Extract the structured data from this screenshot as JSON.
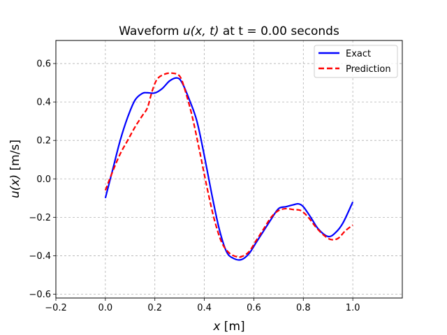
{
  "chart_data": {
    "type": "line",
    "title": "Waveform u(x, t) at t = 0.00 seconds",
    "title_parts": {
      "prefix": "Waveform ",
      "func": "u",
      "args": "(x, t)",
      "suffix": " at t = 0.00 seconds"
    },
    "xlabel": "x [m]",
    "xlabel_parts": {
      "var": "x",
      "unit": " [m]"
    },
    "ylabel": "u(x) [m/s]",
    "ylabel_parts": {
      "func": "u",
      "args": "(x)",
      "unit": " [m/s]"
    },
    "xlim": [
      -0.2,
      1.2
    ],
    "ylim": [
      -0.62,
      0.72
    ],
    "xticks": [
      -0.2,
      0.0,
      0.2,
      0.4,
      0.6,
      0.8,
      1.0
    ],
    "xtick_labels": [
      "−0.2",
      "0.0",
      "0.2",
      "0.4",
      "0.6",
      "0.8",
      "1.0"
    ],
    "yticks": [
      -0.6,
      -0.4,
      -0.2,
      0.0,
      0.2,
      0.4,
      0.6
    ],
    "ytick_labels": [
      "−0.6",
      "−0.4",
      "−0.2",
      "0.0",
      "0.2",
      "0.4",
      "0.6"
    ],
    "grid": true,
    "legend_position": "top-right",
    "series": [
      {
        "name": "Exact",
        "color": "#0000ff",
        "style": "solid",
        "x": [
          0.0,
          0.03,
          0.06,
          0.09,
          0.12,
          0.15,
          0.17,
          0.2,
          0.23,
          0.26,
          0.29,
          0.31,
          0.34,
          0.37,
          0.4,
          0.43,
          0.46,
          0.49,
          0.52,
          0.55,
          0.58,
          0.61,
          0.64,
          0.67,
          0.7,
          0.73,
          0.76,
          0.78,
          0.8,
          0.83,
          0.86,
          0.9,
          0.93,
          0.96,
          1.0
        ],
        "y": [
          -0.1,
          0.05,
          0.2,
          0.32,
          0.41,
          0.445,
          0.448,
          0.447,
          0.47,
          0.51,
          0.525,
          0.5,
          0.41,
          0.3,
          0.12,
          -0.08,
          -0.26,
          -0.38,
          -0.415,
          -0.42,
          -0.39,
          -0.33,
          -0.27,
          -0.21,
          -0.155,
          -0.145,
          -0.135,
          -0.13,
          -0.145,
          -0.2,
          -0.26,
          -0.3,
          -0.28,
          -0.23,
          -0.12
        ]
      },
      {
        "name": "Prediction",
        "color": "#ff0000",
        "style": "dashed",
        "x": [
          0.0,
          0.03,
          0.06,
          0.09,
          0.12,
          0.15,
          0.17,
          0.19,
          0.21,
          0.24,
          0.27,
          0.3,
          0.32,
          0.35,
          0.38,
          0.41,
          0.44,
          0.47,
          0.5,
          0.53,
          0.55,
          0.58,
          0.61,
          0.64,
          0.67,
          0.7,
          0.73,
          0.76,
          0.79,
          0.82,
          0.85,
          0.88,
          0.91,
          0.94,
          0.97,
          1.0
        ],
        "y": [
          -0.06,
          0.04,
          0.13,
          0.2,
          0.27,
          0.33,
          0.37,
          0.46,
          0.52,
          0.545,
          0.55,
          0.535,
          0.47,
          0.33,
          0.15,
          -0.04,
          -0.21,
          -0.33,
          -0.385,
          -0.405,
          -0.405,
          -0.38,
          -0.32,
          -0.26,
          -0.2,
          -0.165,
          -0.155,
          -0.16,
          -0.165,
          -0.2,
          -0.25,
          -0.29,
          -0.315,
          -0.31,
          -0.27,
          -0.24
        ]
      }
    ]
  }
}
